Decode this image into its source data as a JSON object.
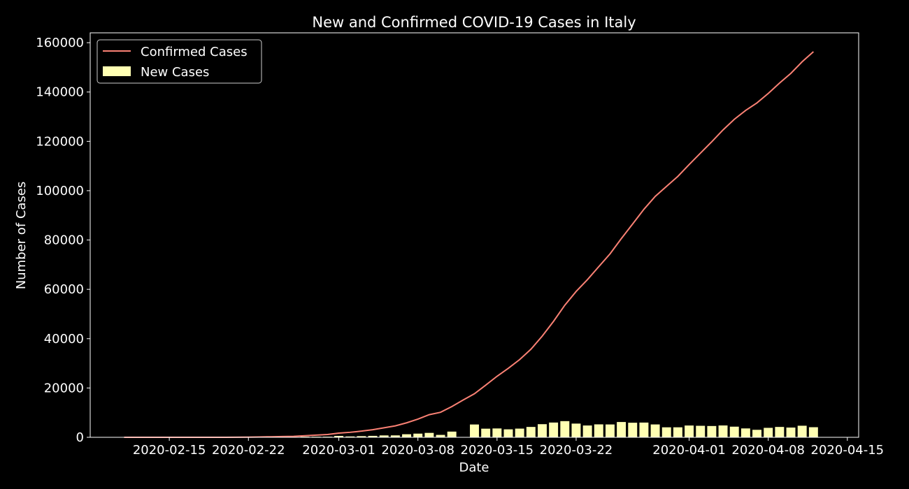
{
  "chart_data": {
    "type": "line",
    "title": "New and Confirmed COVID-19 Cases in Italy",
    "xlabel": "Date",
    "ylabel": "Number of Cases",
    "xlim": [
      "2020-02-08",
      "2020-04-16"
    ],
    "ylim": [
      0,
      164000
    ],
    "x_ticks": [
      "2020-02-15",
      "2020-02-22",
      "2020-03-01",
      "2020-03-08",
      "2020-03-15",
      "2020-03-22",
      "2020-04-01",
      "2020-04-08",
      "2020-04-15"
    ],
    "y_ticks": [
      0,
      20000,
      40000,
      60000,
      80000,
      100000,
      120000,
      140000,
      160000
    ],
    "grid": false,
    "legend_position": "top-left",
    "background_color": "#000000",
    "series": [
      {
        "name": "Confirmed Cases",
        "kind": "line",
        "color": "#fa8174",
        "x": [
          "2020-02-11",
          "2020-02-12",
          "2020-02-13",
          "2020-02-14",
          "2020-02-15",
          "2020-02-16",
          "2020-02-17",
          "2020-02-18",
          "2020-02-19",
          "2020-02-20",
          "2020-02-21",
          "2020-02-22",
          "2020-02-23",
          "2020-02-24",
          "2020-02-25",
          "2020-02-26",
          "2020-02-27",
          "2020-02-28",
          "2020-02-29",
          "2020-03-01",
          "2020-03-02",
          "2020-03-03",
          "2020-03-04",
          "2020-03-05",
          "2020-03-06",
          "2020-03-07",
          "2020-03-08",
          "2020-03-09",
          "2020-03-10",
          "2020-03-11",
          "2020-03-12",
          "2020-03-13",
          "2020-03-14",
          "2020-03-15",
          "2020-03-16",
          "2020-03-17",
          "2020-03-18",
          "2020-03-19",
          "2020-03-20",
          "2020-03-21",
          "2020-03-22",
          "2020-03-23",
          "2020-03-24",
          "2020-03-25",
          "2020-03-26",
          "2020-03-27",
          "2020-03-28",
          "2020-03-29",
          "2020-03-30",
          "2020-03-31",
          "2020-04-01",
          "2020-04-02",
          "2020-04-03",
          "2020-04-04",
          "2020-04-05",
          "2020-04-06",
          "2020-04-07",
          "2020-04-08",
          "2020-04-09",
          "2020-04-10",
          "2020-04-11",
          "2020-04-12"
        ],
        "values": [
          3,
          3,
          3,
          3,
          3,
          3,
          3,
          3,
          3,
          3,
          20,
          79,
          150,
          229,
          322,
          400,
          650,
          888,
          1128,
          1694,
          2036,
          2502,
          3089,
          3858,
          4636,
          5883,
          7375,
          9172,
          10149,
          12462,
          15113,
          17660,
          21157,
          24747,
          27980,
          31506,
          35713,
          41035,
          47021,
          53578,
          59138,
          63927,
          69176,
          74386,
          80589,
          86498,
          92472,
          97689,
          101739,
          105792,
          110574,
          115242,
          119827,
          124632,
          128948,
          132547,
          135586,
          139422,
          143626,
          147577,
          152271,
          156363
        ]
      },
      {
        "name": "New Cases",
        "kind": "bar",
        "color": "#ffffb3",
        "x": [
          "2020-02-21",
          "2020-02-22",
          "2020-02-23",
          "2020-02-24",
          "2020-02-25",
          "2020-02-26",
          "2020-02-27",
          "2020-02-28",
          "2020-02-29",
          "2020-03-01",
          "2020-03-02",
          "2020-03-03",
          "2020-03-04",
          "2020-03-05",
          "2020-03-06",
          "2020-03-07",
          "2020-03-08",
          "2020-03-09",
          "2020-03-10",
          "2020-03-11",
          "2020-03-13",
          "2020-03-14",
          "2020-03-15",
          "2020-03-16",
          "2020-03-17",
          "2020-03-18",
          "2020-03-19",
          "2020-03-20",
          "2020-03-21",
          "2020-03-22",
          "2020-03-23",
          "2020-03-24",
          "2020-03-25",
          "2020-03-26",
          "2020-03-27",
          "2020-03-28",
          "2020-03-29",
          "2020-03-30",
          "2020-03-31",
          "2020-04-01",
          "2020-04-02",
          "2020-04-03",
          "2020-04-04",
          "2020-04-05",
          "2020-04-06",
          "2020-04-07",
          "2020-04-08",
          "2020-04-09",
          "2020-04-10",
          "2020-04-11",
          "2020-04-12"
        ],
        "values": [
          17,
          59,
          71,
          79,
          93,
          78,
          250,
          238,
          240,
          566,
          342,
          466,
          587,
          769,
          778,
          1247,
          1492,
          1797,
          977,
          2313,
          5198,
          3497,
          3590,
          3233,
          3526,
          4207,
          5322,
          5986,
          6557,
          5560,
          4789,
          5249,
          5210,
          6203,
          5909,
          5974,
          5217,
          4050,
          4053,
          4782,
          4668,
          4585,
          4805,
          4316,
          3599,
          3039,
          3836,
          4204,
          3951,
          4694,
          4092
        ]
      }
    ]
  }
}
